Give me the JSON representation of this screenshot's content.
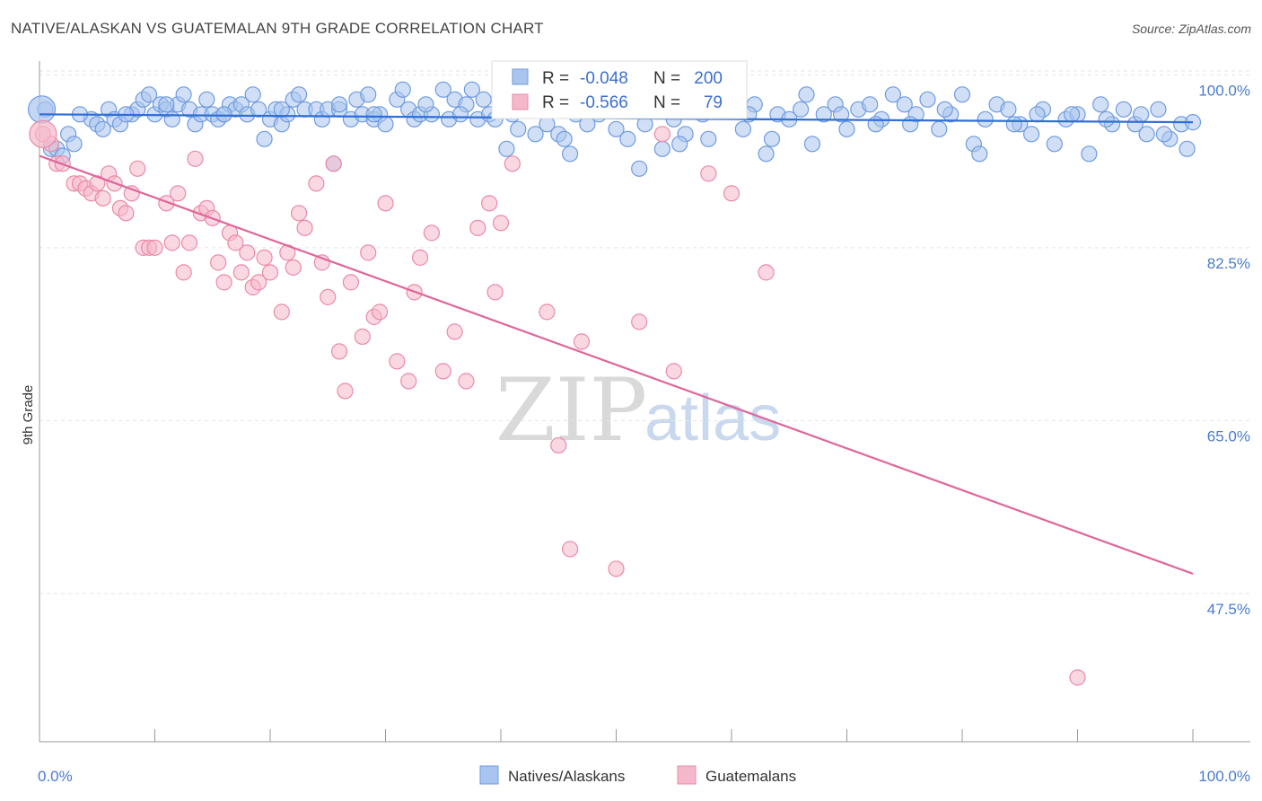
{
  "header": {
    "title": "NATIVE/ALASKAN VS GUATEMALAN 9TH GRADE CORRELATION CHART",
    "source": "Source: ZipAtlas.com"
  },
  "watermark": {
    "zip": "ZIP",
    "atlas": "atlas"
  },
  "legend_top": {
    "rows": [
      {
        "r_label": "R =",
        "r_value": "-0.048",
        "n_label": "N =",
        "n_value": "200",
        "color": "#a9c4ee"
      },
      {
        "r_label": "R =",
        "r_value": "-0.566",
        "n_label": "N =",
        "n_value": "79",
        "color": "#f5b8ca"
      }
    ]
  },
  "legend_bottom": {
    "items": [
      {
        "label": "Natives/Alaskans",
        "color": "#a9c4ee"
      },
      {
        "label": "Guatemalans",
        "color": "#f5b8ca"
      }
    ]
  },
  "chart_data": {
    "type": "scatter",
    "title": "NATIVE/ALASKAN VS GUATEMALAN 9TH GRADE CORRELATION CHART",
    "xlabel": "",
    "ylabel": "9th Grade",
    "xlim": [
      0,
      100
    ],
    "ylim": [
      32.5,
      102.3
    ],
    "x_tick_labels": [
      "0.0%",
      "100.0%"
    ],
    "y_ticks": [
      47.5,
      65.0,
      82.5,
      100.0
    ],
    "y_tick_labels": [
      "47.5%",
      "65.0%",
      "82.5%",
      "100.0%"
    ],
    "grid": true,
    "legend_placement": "top-center",
    "series": [
      {
        "name": "Natives/Alaskans",
        "color": "#a9c4ee",
        "stroke": "#6f9be0",
        "trend_color": "#2f6fd6",
        "trend": {
          "x": [
            0,
            100
          ],
          "y": [
            96.0,
            95.2
          ]
        },
        "points": [
          [
            0.5,
            96.5
          ],
          [
            1,
            92.5
          ],
          [
            1.5,
            92.5
          ],
          [
            2,
            91.8
          ],
          [
            2.5,
            94
          ],
          [
            3,
            93
          ],
          [
            4.5,
            95.5
          ],
          [
            5,
            95
          ],
          [
            5.5,
            94.5
          ],
          [
            6,
            96.5
          ],
          [
            6.5,
            95.5
          ],
          [
            7,
            95
          ],
          [
            8,
            96
          ],
          [
            8.5,
            96.5
          ],
          [
            9,
            97.5
          ],
          [
            9.5,
            98
          ],
          [
            10,
            96
          ],
          [
            10.5,
            97
          ],
          [
            11,
            96.5
          ],
          [
            11.5,
            95.5
          ],
          [
            12,
            97
          ],
          [
            12.5,
            98
          ],
          [
            13,
            96.5
          ],
          [
            13.5,
            95
          ],
          [
            14,
            96
          ],
          [
            14.5,
            97.5
          ],
          [
            15,
            96
          ],
          [
            15.5,
            95.5
          ],
          [
            16,
            96
          ],
          [
            16.5,
            97
          ],
          [
            17,
            96.5
          ],
          [
            17.5,
            97
          ],
          [
            18,
            96
          ],
          [
            18.5,
            98
          ],
          [
            19,
            96.5
          ],
          [
            19.5,
            93.5
          ],
          [
            20,
            95.5
          ],
          [
            20.5,
            96.5
          ],
          [
            21,
            95
          ],
          [
            21.5,
            96
          ],
          [
            22,
            97.5
          ],
          [
            22.5,
            98
          ],
          [
            23,
            96.5
          ],
          [
            24,
            96.5
          ],
          [
            24.5,
            95.5
          ],
          [
            25,
            96.5
          ],
          [
            25.5,
            91
          ],
          [
            26,
            96.5
          ],
          [
            27,
            95.5
          ],
          [
            27.5,
            97.5
          ],
          [
            28,
            96
          ],
          [
            28.5,
            98
          ],
          [
            29,
            95.5
          ],
          [
            29.5,
            96
          ],
          [
            30,
            95
          ],
          [
            31,
            97.5
          ],
          [
            31.5,
            98.5
          ],
          [
            32,
            96.5
          ],
          [
            32.5,
            95.5
          ],
          [
            33,
            96
          ],
          [
            34,
            96
          ],
          [
            35,
            98.5
          ],
          [
            35.5,
            95.5
          ],
          [
            36,
            97.5
          ],
          [
            37,
            97
          ],
          [
            37.5,
            98.5
          ],
          [
            38,
            95.5
          ],
          [
            38.5,
            97.5
          ],
          [
            39,
            96
          ],
          [
            40,
            97
          ],
          [
            40.5,
            92.5
          ],
          [
            41,
            96
          ],
          [
            41.5,
            94.5
          ],
          [
            42,
            97
          ],
          [
            43,
            94
          ],
          [
            44,
            95
          ],
          [
            44.5,
            97.5
          ],
          [
            45,
            94
          ],
          [
            45.5,
            93.5
          ],
          [
            46,
            92
          ],
          [
            47,
            97
          ],
          [
            47.5,
            95
          ],
          [
            48,
            99
          ],
          [
            49,
            96.5
          ],
          [
            50,
            94.5
          ],
          [
            51,
            93.5
          ],
          [
            52,
            90.5
          ],
          [
            53,
            96.5
          ],
          [
            54,
            92.5
          ],
          [
            55,
            95.5
          ],
          [
            56,
            94
          ],
          [
            57,
            97
          ],
          [
            58,
            93.5
          ],
          [
            59,
            97.5
          ],
          [
            60,
            96.5
          ],
          [
            61,
            94.5
          ],
          [
            62,
            97
          ],
          [
            63,
            92
          ],
          [
            64,
            96
          ],
          [
            65,
            95.5
          ],
          [
            66,
            96.5
          ],
          [
            67,
            93
          ],
          [
            68,
            96
          ],
          [
            69,
            97
          ],
          [
            70,
            94.5
          ],
          [
            71,
            96.5
          ],
          [
            72,
            97
          ],
          [
            73,
            95.5
          ],
          [
            74,
            98
          ],
          [
            75,
            97
          ],
          [
            76,
            96
          ],
          [
            77,
            97.5
          ],
          [
            78,
            94.5
          ],
          [
            79,
            96
          ],
          [
            80,
            98
          ],
          [
            81,
            93
          ],
          [
            82,
            95.5
          ],
          [
            83,
            97
          ],
          [
            84,
            96.5
          ],
          [
            85,
            95
          ],
          [
            86,
            94
          ],
          [
            87,
            96.5
          ],
          [
            88,
            93
          ],
          [
            89,
            95.5
          ],
          [
            90,
            96
          ],
          [
            91,
            92
          ],
          [
            92,
            97
          ],
          [
            93,
            95
          ],
          [
            94,
            96.5
          ],
          [
            95,
            95
          ],
          [
            96,
            94
          ],
          [
            97,
            96.5
          ],
          [
            98,
            93.5
          ],
          [
            99,
            95
          ],
          [
            100,
            95.2
          ],
          [
            3.5,
            96
          ],
          [
            7.5,
            96
          ],
          [
            11,
            97
          ],
          [
            16,
            96
          ],
          [
            21,
            96.5
          ],
          [
            26,
            97
          ],
          [
            29,
            96
          ],
          [
            33.5,
            97
          ],
          [
            36.5,
            96
          ],
          [
            39.5,
            95.5
          ],
          [
            42.5,
            96.5
          ],
          [
            46.5,
            96
          ],
          [
            48.5,
            96
          ],
          [
            52.5,
            95
          ],
          [
            55.5,
            93
          ],
          [
            57.5,
            96
          ],
          [
            61.5,
            96
          ],
          [
            63.5,
            93.5
          ],
          [
            66.5,
            98
          ],
          [
            69.5,
            96
          ],
          [
            72.5,
            95
          ],
          [
            75.5,
            95
          ],
          [
            78.5,
            96.5
          ],
          [
            81.5,
            92
          ],
          [
            84.5,
            95
          ],
          [
            86.5,
            96
          ],
          [
            89.5,
            96
          ],
          [
            92.5,
            95.5
          ],
          [
            95.5,
            96
          ],
          [
            97.5,
            94
          ],
          [
            99.5,
            92.5
          ]
        ],
        "big_points": [
          [
            0.2,
            96.5
          ]
        ]
      },
      {
        "name": "Guatemalans",
        "color": "#f5b8ca",
        "stroke": "#eb8aa8",
        "trend_color": "#e0679a",
        "trend": {
          "x": [
            0,
            100
          ],
          "y": [
            91.8,
            49.5
          ]
        },
        "points": [
          [
            1,
            93
          ],
          [
            1.5,
            91
          ],
          [
            2,
            91
          ],
          [
            3,
            89
          ],
          [
            3.5,
            89
          ],
          [
            4,
            88.5
          ],
          [
            4.5,
            88
          ],
          [
            5,
            89
          ],
          [
            5.5,
            87.5
          ],
          [
            6,
            90
          ],
          [
            6.5,
            89
          ],
          [
            7,
            86.5
          ],
          [
            7.5,
            86
          ],
          [
            8,
            88
          ],
          [
            8.5,
            90.5
          ],
          [
            9,
            82.5
          ],
          [
            9.5,
            82.5
          ],
          [
            10,
            82.5
          ],
          [
            11,
            87
          ],
          [
            11.5,
            83
          ],
          [
            12,
            88
          ],
          [
            12.5,
            80
          ],
          [
            13,
            83
          ],
          [
            13.5,
            91.5
          ],
          [
            14,
            86
          ],
          [
            14.5,
            86.5
          ],
          [
            15,
            85.5
          ],
          [
            15.5,
            81
          ],
          [
            16,
            79
          ],
          [
            16.5,
            84
          ],
          [
            17,
            83
          ],
          [
            17.5,
            80
          ],
          [
            18,
            82
          ],
          [
            18.5,
            78.5
          ],
          [
            19,
            79
          ],
          [
            19.5,
            81.5
          ],
          [
            20,
            80
          ],
          [
            21,
            76
          ],
          [
            21.5,
            82
          ],
          [
            22,
            80.5
          ],
          [
            22.5,
            86
          ],
          [
            23,
            84.5
          ],
          [
            24,
            89
          ],
          [
            24.5,
            81
          ],
          [
            25,
            77.5
          ],
          [
            25.5,
            91
          ],
          [
            26,
            72
          ],
          [
            26.5,
            68
          ],
          [
            27,
            79
          ],
          [
            28,
            73.5
          ],
          [
            28.5,
            82
          ],
          [
            29,
            75.5
          ],
          [
            29.5,
            76
          ],
          [
            30,
            87
          ],
          [
            31,
            71
          ],
          [
            32,
            69
          ],
          [
            32.5,
            78
          ],
          [
            33,
            81.5
          ],
          [
            34,
            84
          ],
          [
            35,
            70
          ],
          [
            36,
            74
          ],
          [
            37,
            69
          ],
          [
            38,
            84.5
          ],
          [
            39,
            87
          ],
          [
            39.5,
            78
          ],
          [
            40,
            85
          ],
          [
            41,
            91
          ],
          [
            42,
            96.5
          ],
          [
            44,
            76
          ],
          [
            45,
            62.5
          ],
          [
            46,
            52
          ],
          [
            47,
            73
          ],
          [
            48,
            97
          ],
          [
            50,
            50
          ],
          [
            52,
            75
          ],
          [
            54,
            94
          ],
          [
            55,
            70
          ],
          [
            58,
            90
          ],
          [
            60,
            88
          ],
          [
            63,
            80
          ],
          [
            90,
            39
          ],
          [
            0.3,
            94
          ]
        ],
        "big_points": [
          [
            0.3,
            94
          ]
        ]
      }
    ]
  }
}
